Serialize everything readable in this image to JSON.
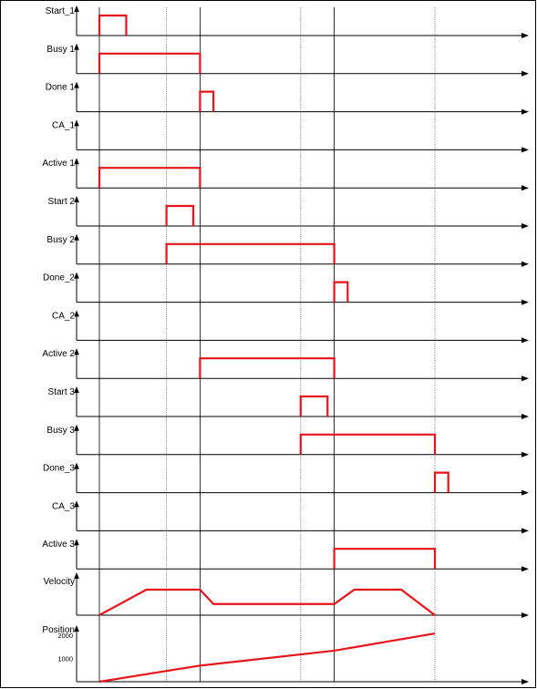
{
  "signals": [
    {
      "id": "start-1",
      "label": "Start_1",
      "segments": [
        [
          1,
          2
        ]
      ]
    },
    {
      "id": "busy-1",
      "label": "Busy  1",
      "segments": [
        [
          1,
          5
        ]
      ]
    },
    {
      "id": "done-1",
      "label": "Done  1",
      "segments": [
        [
          5,
          6
        ]
      ]
    },
    {
      "id": "ca-1",
      "label": "CA_1",
      "segments": []
    },
    {
      "id": "active-1",
      "label": "Active  1",
      "segments": [
        [
          1,
          5
        ]
      ]
    },
    {
      "id": "start-2",
      "label": "Start  2",
      "segments": [
        [
          3,
          4
        ]
      ]
    },
    {
      "id": "busy-2",
      "label": "Busy  2",
      "segments": [
        [
          3,
          9
        ]
      ]
    },
    {
      "id": "done-2",
      "label": "Done_2",
      "segments": [
        [
          9,
          10
        ]
      ]
    },
    {
      "id": "ca-2",
      "label": "CA_2",
      "segments": []
    },
    {
      "id": "active-2",
      "label": "Active  2",
      "segments": [
        [
          5,
          9
        ]
      ]
    },
    {
      "id": "start-3",
      "label": "Start  3",
      "segments": [
        [
          7,
          8
        ]
      ]
    },
    {
      "id": "busy-3",
      "label": "Busy  3",
      "segments": [
        [
          7,
          11
        ]
      ]
    },
    {
      "id": "done-3",
      "label": "Done_3",
      "segments": [
        [
          11,
          12
        ]
      ]
    },
    {
      "id": "ca-3",
      "label": "CA_3",
      "segments": []
    },
    {
      "id": "active-3",
      "label": "Active  3",
      "segments": [
        [
          9,
          11
        ]
      ]
    }
  ],
  "events": [
    {
      "id": 1,
      "t": 0.0,
      "guide": "solid"
    },
    {
      "id": 2,
      "t": 0.8
    },
    {
      "id": 3,
      "t": 2.0,
      "guide": "dotted"
    },
    {
      "id": 4,
      "t": 2.8
    },
    {
      "id": 5,
      "t": 3.0,
      "guide": "solid"
    },
    {
      "id": 6,
      "t": 3.4
    },
    {
      "id": 7,
      "t": 6.0,
      "guide": "dotted"
    },
    {
      "id": 8,
      "t": 6.8
    },
    {
      "id": 9,
      "t": 7.0,
      "guide": "solid"
    },
    {
      "id": 10,
      "t": 7.4
    },
    {
      "id": 11,
      "t": 10.0,
      "guide": "dotted"
    },
    {
      "id": 12,
      "t": 10.4
    }
  ],
  "velocity": {
    "label": "Velocity",
    "points": [
      [
        0,
        0
      ],
      [
        1.4,
        0.8
      ],
      [
        3.0,
        0.8
      ],
      [
        3.4,
        0.35
      ],
      [
        7.0,
        0.35
      ],
      [
        7.6,
        0.8
      ],
      [
        9.0,
        0.8
      ],
      [
        10.0,
        0
      ]
    ]
  },
  "position": {
    "label": "Position",
    "ticks": [
      {
        "value": 2000,
        "label": "2000"
      },
      {
        "value": 1000,
        "label": "1000"
      }
    ],
    "ymax": 2300,
    "points": [
      [
        0,
        0
      ],
      [
        3.0,
        700
      ],
      [
        7.0,
        1350
      ],
      [
        10.0,
        2100
      ]
    ]
  }
}
